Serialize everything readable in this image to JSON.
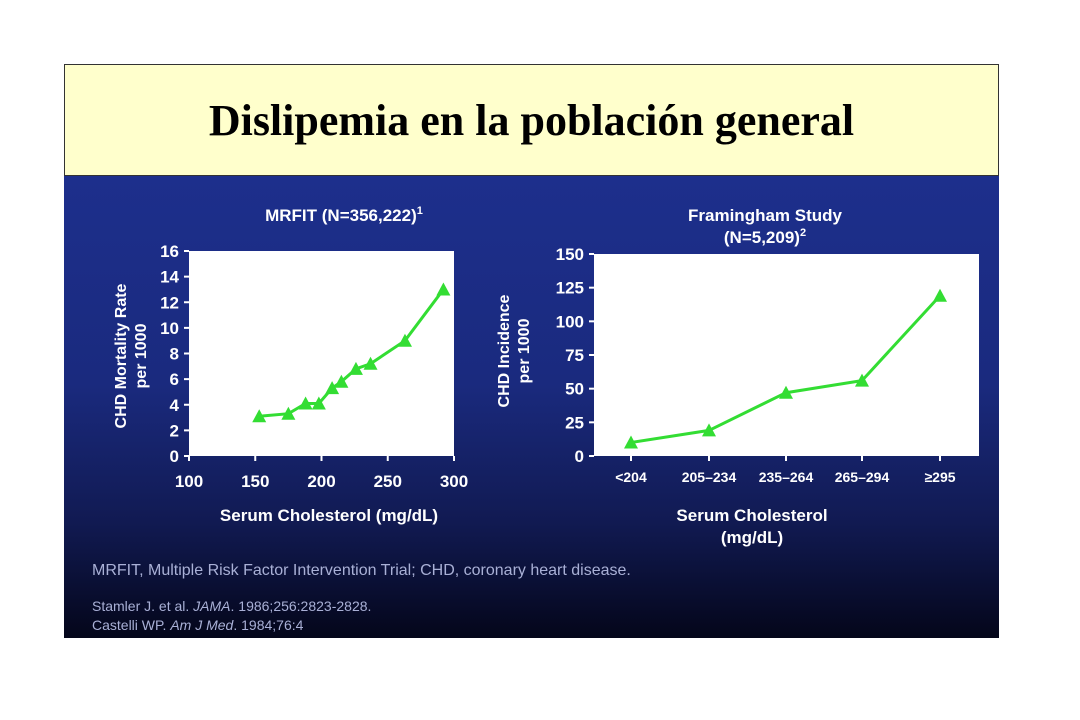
{
  "slide": {
    "title": "Dislipemia en la población general",
    "footnote": "MRFIT, Multiple Risk Factor Intervention Trial; CHD, coronary heart disease.",
    "references": [
      {
        "pre": "Stamler J. et al. ",
        "journal": "JAMA",
        "post": ". 1986;256:2823-2828."
      },
      {
        "pre": "Castelli WP. ",
        "journal": "Am J Med",
        "post": ". 1984;76:4"
      }
    ]
  },
  "colors": {
    "title_bg": "#ffffcc",
    "panel_bg": "#1d2f8c",
    "series": "#33dd33",
    "text": "#ffffff"
  },
  "chart_data": [
    {
      "type": "line",
      "title": "MRFIT (N=356,222)",
      "title_sup": "1",
      "xlabel": "Serum Cholesterol (mg/dL)",
      "ylabel": [
        "CHD Mortality Rate",
        "per 1000"
      ],
      "xlim": [
        100,
        300
      ],
      "ylim": [
        0,
        16
      ],
      "xticks": [
        100,
        150,
        200,
        250,
        300
      ],
      "yticks": [
        0,
        2,
        4,
        6,
        8,
        10,
        12,
        14,
        16
      ],
      "series": [
        {
          "x": [
            153,
            175,
            188,
            198,
            208,
            215,
            226,
            237,
            263,
            292
          ],
          "y": [
            3.1,
            3.3,
            4.1,
            4.1,
            5.3,
            5.8,
            6.8,
            7.2,
            9.0,
            13.0
          ]
        }
      ]
    },
    {
      "type": "line",
      "title": "Framingham Study",
      "title_line2": "(N=5,209)",
      "title_sup": "2",
      "xlabel": "Serum Cholesterol",
      "xlabel_line2": "(mg/dL)",
      "ylabel": [
        "CHD Incidence",
        "per 1000"
      ],
      "categories": [
        "<204",
        "205–234",
        "235–264",
        "265–294",
        "≥295"
      ],
      "ylim": [
        0,
        150
      ],
      "yticks": [
        0,
        25,
        50,
        75,
        100,
        125,
        150
      ],
      "series": [
        {
          "values": [
            10,
            19,
            47,
            56,
            119
          ]
        }
      ]
    }
  ]
}
